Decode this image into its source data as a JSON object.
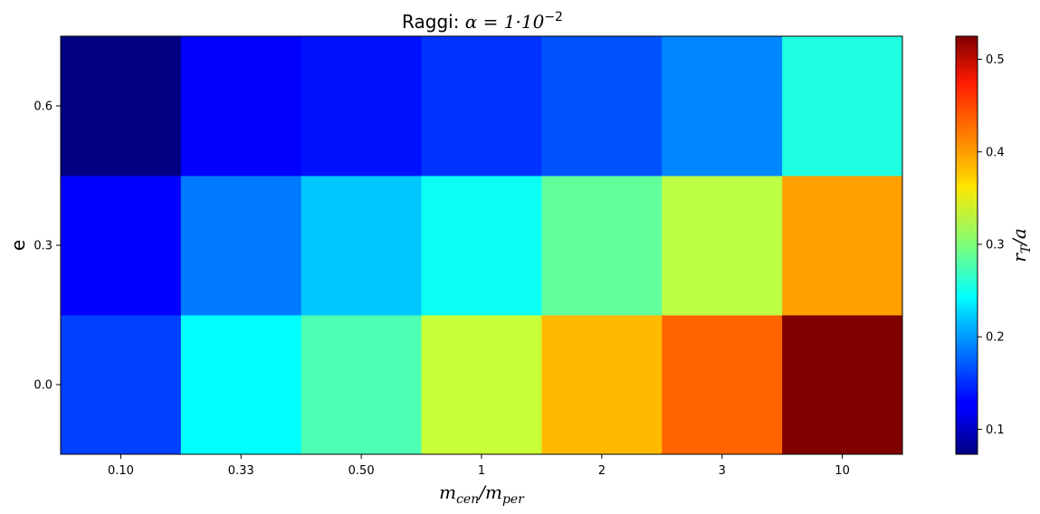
{
  "chart_data": {
    "type": "heatmap",
    "title_prefix": "Raggi: ",
    "title_math": "α = 1·10",
    "title_exp": "−2",
    "xlabel": {
      "m1": "m",
      "s1": "cen",
      "sep": "/",
      "m2": "m",
      "s2": "per"
    },
    "ylabel": "e",
    "colorbar_label": {
      "r": "r",
      "sub": "T",
      "rest": "/a"
    },
    "x_categories": [
      "0.10",
      "0.33",
      "0.50",
      "1",
      "2",
      "3",
      "10"
    ],
    "y_categories": [
      "0.0",
      "0.3",
      "0.6"
    ],
    "values": [
      [
        0.158,
        0.243,
        0.276,
        0.331,
        0.386,
        0.424,
        0.525
      ],
      [
        0.13,
        0.184,
        0.218,
        0.248,
        0.286,
        0.326,
        0.398
      ],
      [
        0.073,
        0.128,
        0.137,
        0.152,
        0.166,
        0.189,
        0.256
      ]
    ],
    "vmin": 0.073,
    "vmax": 0.525,
    "colormap": "jet",
    "colorbar_ticks": [
      "0.1",
      "0.2",
      "0.3",
      "0.4",
      "0.5"
    ],
    "grid": false
  }
}
